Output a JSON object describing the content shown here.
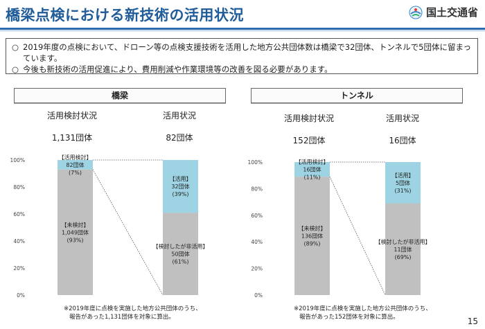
{
  "header": {
    "title": "橋梁点検における新技術の活用状況",
    "logo_text": "国土交通省"
  },
  "summary": {
    "bullet": "○",
    "lines": [
      "2019年度の点検において、ドローン等の点検支援技術を活用した地方公共団体数は橋梁で32団体、トンネルで5団体に留まっています。",
      "今後も新技術の活用促進により、費用削減や作業環境等の改善を図る必要があります。"
    ]
  },
  "page_number": "15",
  "chart_data": [
    {
      "type": "bar",
      "panel_title": "橋梁",
      "y_ticks": [
        "0%",
        "20%",
        "40%",
        "60%",
        "80%",
        "100%"
      ],
      "ylim": [
        0,
        100
      ],
      "bars": [
        {
          "heading": "活用検討状況",
          "total": "1,131団体",
          "segments": [
            {
              "key": "gray",
              "label_lines": [
                "【未検討】",
                "1,049団体",
                "(93%)"
              ],
              "value": 93,
              "color": "#c0c0c0"
            },
            {
              "key": "blue",
              "label_lines": [
                "【活用検討】",
                "82団体",
                "(7%)"
              ],
              "value": 7,
              "color": "#9dd3e2"
            }
          ]
        },
        {
          "heading": "活用状況",
          "total": "82団体",
          "segments": [
            {
              "key": "gray",
              "label_lines": [
                "【検討したが非活用】",
                "50団体",
                "(61%)"
              ],
              "value": 61,
              "color": "#c0c0c0"
            },
            {
              "key": "blue",
              "label_lines": [
                "【活用】",
                "32団体",
                "(39%)"
              ],
              "value": 39,
              "color": "#9dd3e2"
            }
          ]
        }
      ],
      "footnote_lines": [
        "※2019年度に点検を実施した地方公共団体のうち、",
        "報告があった1,131団体を対象に算出。"
      ]
    },
    {
      "type": "bar",
      "panel_title": "トンネル",
      "y_ticks": [
        "0%",
        "20%",
        "40%",
        "60%",
        "80%",
        "100%"
      ],
      "ylim": [
        0,
        100
      ],
      "bars": [
        {
          "heading": "活用検討状況",
          "total": "152団体",
          "segments": [
            {
              "key": "gray",
              "label_lines": [
                "【未検討】",
                "136団体",
                "(89%)"
              ],
              "value": 89,
              "color": "#c0c0c0"
            },
            {
              "key": "blue",
              "label_lines": [
                "【活用検討】",
                "16団体",
                "(11%)"
              ],
              "value": 11,
              "color": "#9dd3e2"
            }
          ]
        },
        {
          "heading": "活用状況",
          "total": "16団体",
          "segments": [
            {
              "key": "gray",
              "label_lines": [
                "【検討したが非活用】",
                "11団体",
                "(69%)"
              ],
              "value": 69,
              "color": "#c0c0c0"
            },
            {
              "key": "blue",
              "label_lines": [
                "【活用】",
                "5団体",
                "(31%)"
              ],
              "value": 31,
              "color": "#9dd3e2"
            }
          ]
        }
      ],
      "footnote_lines": [
        "※2019年度に点検を実施した地方公共団体のうち、",
        "報告があった152団体を対象に算出。"
      ]
    }
  ]
}
